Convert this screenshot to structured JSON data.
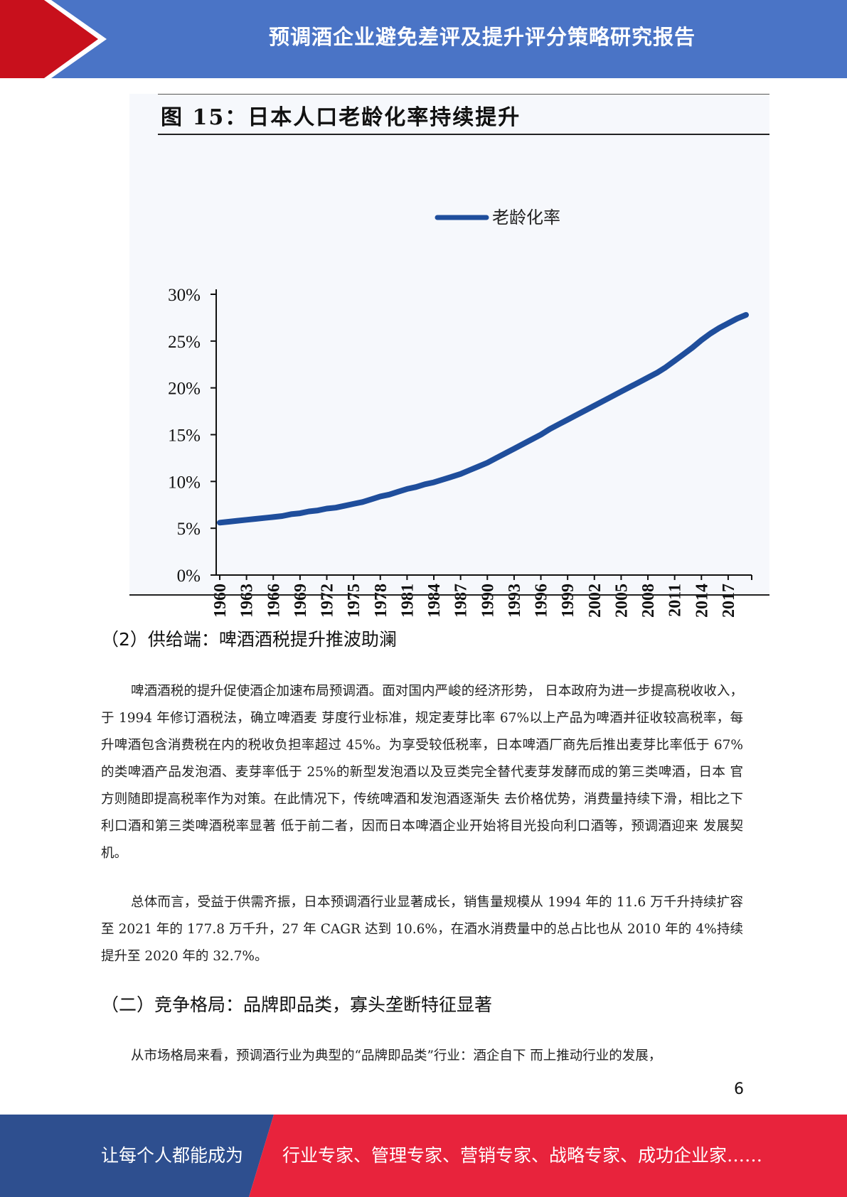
{
  "header": {
    "title": "预调酒企业避免差评及提升评分策略研究报告"
  },
  "figure": {
    "title": "图 15：日本人口老龄化率持续提升"
  },
  "chart_data": {
    "type": "line",
    "title": "图 15：日本人口老龄化率持续提升",
    "legend": {
      "position": "top",
      "entries": [
        "老龄化率"
      ]
    },
    "x": [
      1960,
      1961,
      1962,
      1963,
      1964,
      1965,
      1966,
      1967,
      1968,
      1969,
      1970,
      1971,
      1972,
      1973,
      1974,
      1975,
      1976,
      1977,
      1978,
      1979,
      1980,
      1981,
      1982,
      1983,
      1984,
      1985,
      1986,
      1987,
      1988,
      1989,
      1990,
      1991,
      1992,
      1993,
      1994,
      1995,
      1996,
      1997,
      1998,
      1999,
      2000,
      2001,
      2002,
      2003,
      2004,
      2005,
      2006,
      2007,
      2008,
      2009,
      2010,
      2011,
      2012,
      2013,
      2014,
      2015,
      2016,
      2017,
      2018,
      2019
    ],
    "x_tick_labels": [
      "1960",
      "1963",
      "1966",
      "1969",
      "1972",
      "1975",
      "1978",
      "1981",
      "1984",
      "1987",
      "1990",
      "1993",
      "1996",
      "1999",
      "2002",
      "2005",
      "2008",
      "2011",
      "2014",
      "2017"
    ],
    "y_tick_labels": [
      "0%",
      "5%",
      "10%",
      "15%",
      "20%",
      "25%",
      "30%"
    ],
    "ylim": [
      0,
      30
    ],
    "y_unit": "%",
    "grid": false,
    "series": [
      {
        "name": "老龄化率",
        "color": "#1f4e9c",
        "values": [
          5.6,
          5.7,
          5.8,
          5.9,
          6.0,
          6.1,
          6.2,
          6.3,
          6.5,
          6.6,
          6.8,
          6.9,
          7.1,
          7.2,
          7.4,
          7.6,
          7.8,
          8.1,
          8.4,
          8.6,
          8.9,
          9.2,
          9.4,
          9.7,
          9.9,
          10.2,
          10.5,
          10.8,
          11.2,
          11.6,
          12.0,
          12.5,
          13.0,
          13.5,
          14.0,
          14.5,
          15.0,
          15.6,
          16.1,
          16.6,
          17.1,
          17.6,
          18.1,
          18.6,
          19.1,
          19.6,
          20.1,
          20.6,
          21.1,
          21.6,
          22.2,
          22.9,
          23.6,
          24.3,
          25.1,
          25.8,
          26.4,
          26.9,
          27.4,
          27.8
        ]
      }
    ]
  },
  "sections": {
    "supply_heading": "（2）供给端：啤酒酒税提升推波助澜",
    "para1": "啤酒酒税的提升促使酒企加速布局预调酒。面对国内严峻的经济形势， 日本政府为进一步提高税收收入，于 1994 年修订酒税法，确立啤酒麦 芽度行业标准，规定麦芽比率 67%以上产品为啤酒并征收较高税率，每 升啤酒包含消费税在内的税收负担率超过 45%。为享受较低税率，日本啤酒厂商先后推出麦芽比率低于 67%的类啤酒产品发泡酒、麦芽率低于 25%的新型发泡酒以及豆类完全替代麦芽发酵而成的第三类啤酒，日本 官方则随即提高税率作为对策。在此情况下，传统啤酒和发泡酒逐渐失 去价格优势，消费量持续下滑，相比之下利口酒和第三类啤酒税率显著 低于前二者，因而日本啤酒企业开始将目光投向利口酒等，预调酒迎来 发展契机。",
    "para2": "总体而言，受益于供需齐振，日本预调酒行业显著成长，销售量规模从 1994 年的 11.6 万千升持续扩容至 2021 年的 177.8 万千升，27 年 CAGR 达到 10.6%，在酒水消费量中的总占比也从 2010 年的 4%持续提升至 2020 年的 32.7%。",
    "competition_heading": "（二）竞争格局：品牌即品类，寡头垄断特征显著",
    "para3": "从市场格局来看，预调酒行业为典型的“品牌即品类”行业：酒企自下 而上推动行业的发展，"
  },
  "page": {
    "number": "6"
  },
  "footer": {
    "left_text": "让每个人都能成为",
    "right_text": "行业专家、管理专家、营销专家、战略专家、成功企业家……",
    "left_color": "#2e4f8f",
    "right_color": "#e8233c"
  },
  "colors": {
    "header_bg": "#4a74c6",
    "header_accent": "#c8101c"
  }
}
